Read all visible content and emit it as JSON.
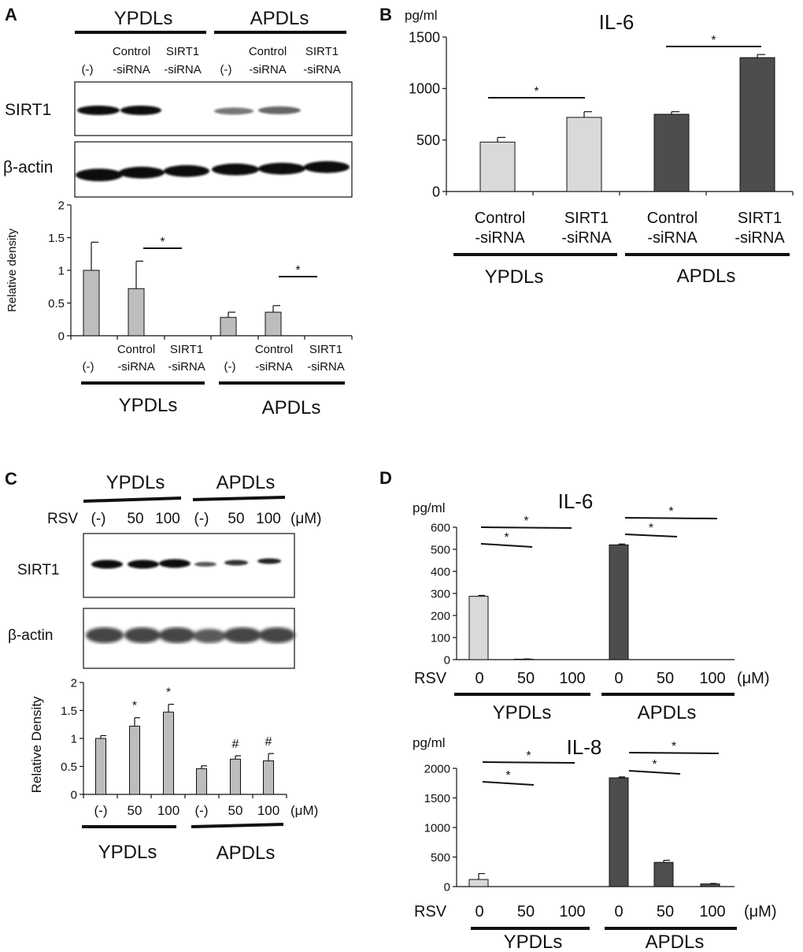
{
  "panels": {
    "a": {
      "label": "A",
      "groups": [
        "YPDLs",
        "APDLs"
      ],
      "lane_labels": [
        [
          "(-)"
        ],
        [
          "Control",
          "-siRNA"
        ],
        [
          "SIRT1",
          "-siRNA"
        ],
        [
          "(-)"
        ],
        [
          "Control",
          "-siRNA"
        ],
        [
          "SIRT1",
          "-siRNA"
        ]
      ],
      "blot_labels": [
        "SIRT1",
        "β-actin"
      ]
    },
    "b": {
      "label": "B"
    },
    "c": {
      "label": "C",
      "groups": [
        "YPDLs",
        "APDLs"
      ],
      "rsv_label": "RSV",
      "lane_labels": [
        "(-)",
        "50",
        "100",
        "(-)",
        "50",
        "100"
      ],
      "unit": "(μM)",
      "blot_labels": [
        "SIRT1",
        "β-actin"
      ]
    },
    "d": {
      "label": "D"
    }
  },
  "colors": {
    "light_bar": "#d9d9d9",
    "dark_bar": "#4d4d4d",
    "gray_bar": "#bdbdbd"
  },
  "chart_data": [
    {
      "id": "a-density",
      "type": "bar",
      "ylabel": "Relative density",
      "ylim": [
        0,
        2
      ],
      "yticks": [
        "0",
        "0.5",
        "1",
        "1.5",
        "2"
      ],
      "categories": [
        [
          "(-)"
        ],
        [
          "Control",
          "-siRNA"
        ],
        [
          "SIRT1",
          "-siRNA"
        ],
        [
          "(-)"
        ],
        [
          "Control",
          "-siRNA"
        ],
        [
          "SIRT1",
          "-siRNA"
        ]
      ],
      "groups": [
        "YPDLs",
        "APDLs"
      ],
      "values": [
        1.0,
        0.72,
        0.0,
        0.28,
        0.36,
        0.0
      ],
      "errors": [
        0.43,
        0.42,
        0.0,
        0.08,
        0.1,
        0.0
      ],
      "annotations": [
        {
          "from": 1,
          "to": 2,
          "text": "*"
        },
        {
          "from": 4,
          "to": 5,
          "text": "*"
        }
      ]
    },
    {
      "id": "b-il6",
      "type": "bar",
      "title": "IL-6",
      "unit_label": "pg/ml",
      "ylim": [
        0,
        1500
      ],
      "yticks": [
        "0",
        "500",
        "1000",
        "1500"
      ],
      "categories": [
        [
          "Control",
          "-siRNA"
        ],
        [
          "SIRT1",
          "-siRNA"
        ],
        [
          "Control",
          "-siRNA"
        ],
        [
          "SIRT1",
          "-siRNA"
        ]
      ],
      "groups": [
        "YPDLs",
        "APDLs"
      ],
      "values": [
        480,
        720,
        750,
        1300
      ],
      "errors": [
        45,
        55,
        25,
        30
      ],
      "annotations": [
        {
          "from": 0,
          "to": 1,
          "text": "*"
        },
        {
          "from": 2,
          "to": 3,
          "text": "*"
        }
      ]
    },
    {
      "id": "c-density",
      "type": "bar",
      "ylabel": "Relative Density",
      "ylim": [
        0,
        2
      ],
      "yticks": [
        "0",
        "0.5",
        "1",
        "1.5",
        "2"
      ],
      "categories": [
        "(-)",
        "50",
        "100",
        "(-)",
        "50",
        "100"
      ],
      "unit": "(μM)",
      "groups": [
        "YPDLs",
        "APDLs"
      ],
      "values": [
        1.0,
        1.22,
        1.47,
        0.46,
        0.63,
        0.6
      ],
      "errors": [
        0.05,
        0.15,
        0.14,
        0.05,
        0.06,
        0.13
      ],
      "marks": [
        "",
        "*",
        "*",
        "",
        "#",
        "#"
      ]
    },
    {
      "id": "d-il6",
      "type": "bar",
      "title": "IL-6",
      "unit_label": "pg/ml",
      "ylim": [
        0,
        600
      ],
      "yticks": [
        "0",
        "100",
        "200",
        "300",
        "400",
        "500",
        "600"
      ],
      "rsv_label": "RSV",
      "categories": [
        "0",
        "50",
        "100",
        "0",
        "50",
        "100"
      ],
      "unit": "(μM)",
      "groups": [
        "YPDLs",
        "APDLs"
      ],
      "values": [
        287,
        2,
        0,
        520,
        0,
        0
      ],
      "errors": [
        4,
        1,
        0,
        4,
        0,
        0
      ],
      "annotations": [
        {
          "from": 0,
          "to": 1,
          "text": "*"
        },
        {
          "from": 0,
          "to": 2,
          "text": "*"
        },
        {
          "from": 3,
          "to": 4,
          "text": "*"
        },
        {
          "from": 3,
          "to": 5,
          "text": "*"
        }
      ]
    },
    {
      "id": "d-il8",
      "type": "bar",
      "title": "IL-8",
      "unit_label": "pg/ml",
      "ylim": [
        0,
        2000
      ],
      "yticks": [
        "0",
        "500",
        "1000",
        "1500",
        "2000"
      ],
      "rsv_label": "RSV",
      "categories": [
        "0",
        "50",
        "100",
        "0",
        "50",
        "100"
      ],
      "unit": "(μM)",
      "groups": [
        "YPDLs",
        "APDLs"
      ],
      "values": [
        120,
        0,
        0,
        1840,
        410,
        45
      ],
      "errors": [
        100,
        0,
        0,
        15,
        35,
        8
      ],
      "annotations": [
        {
          "from": 0,
          "to": 1,
          "text": "*"
        },
        {
          "from": 0,
          "to": 2,
          "text": "*"
        },
        {
          "from": 3,
          "to": 4,
          "text": "*"
        },
        {
          "from": 3,
          "to": 5,
          "text": "*"
        }
      ]
    }
  ]
}
